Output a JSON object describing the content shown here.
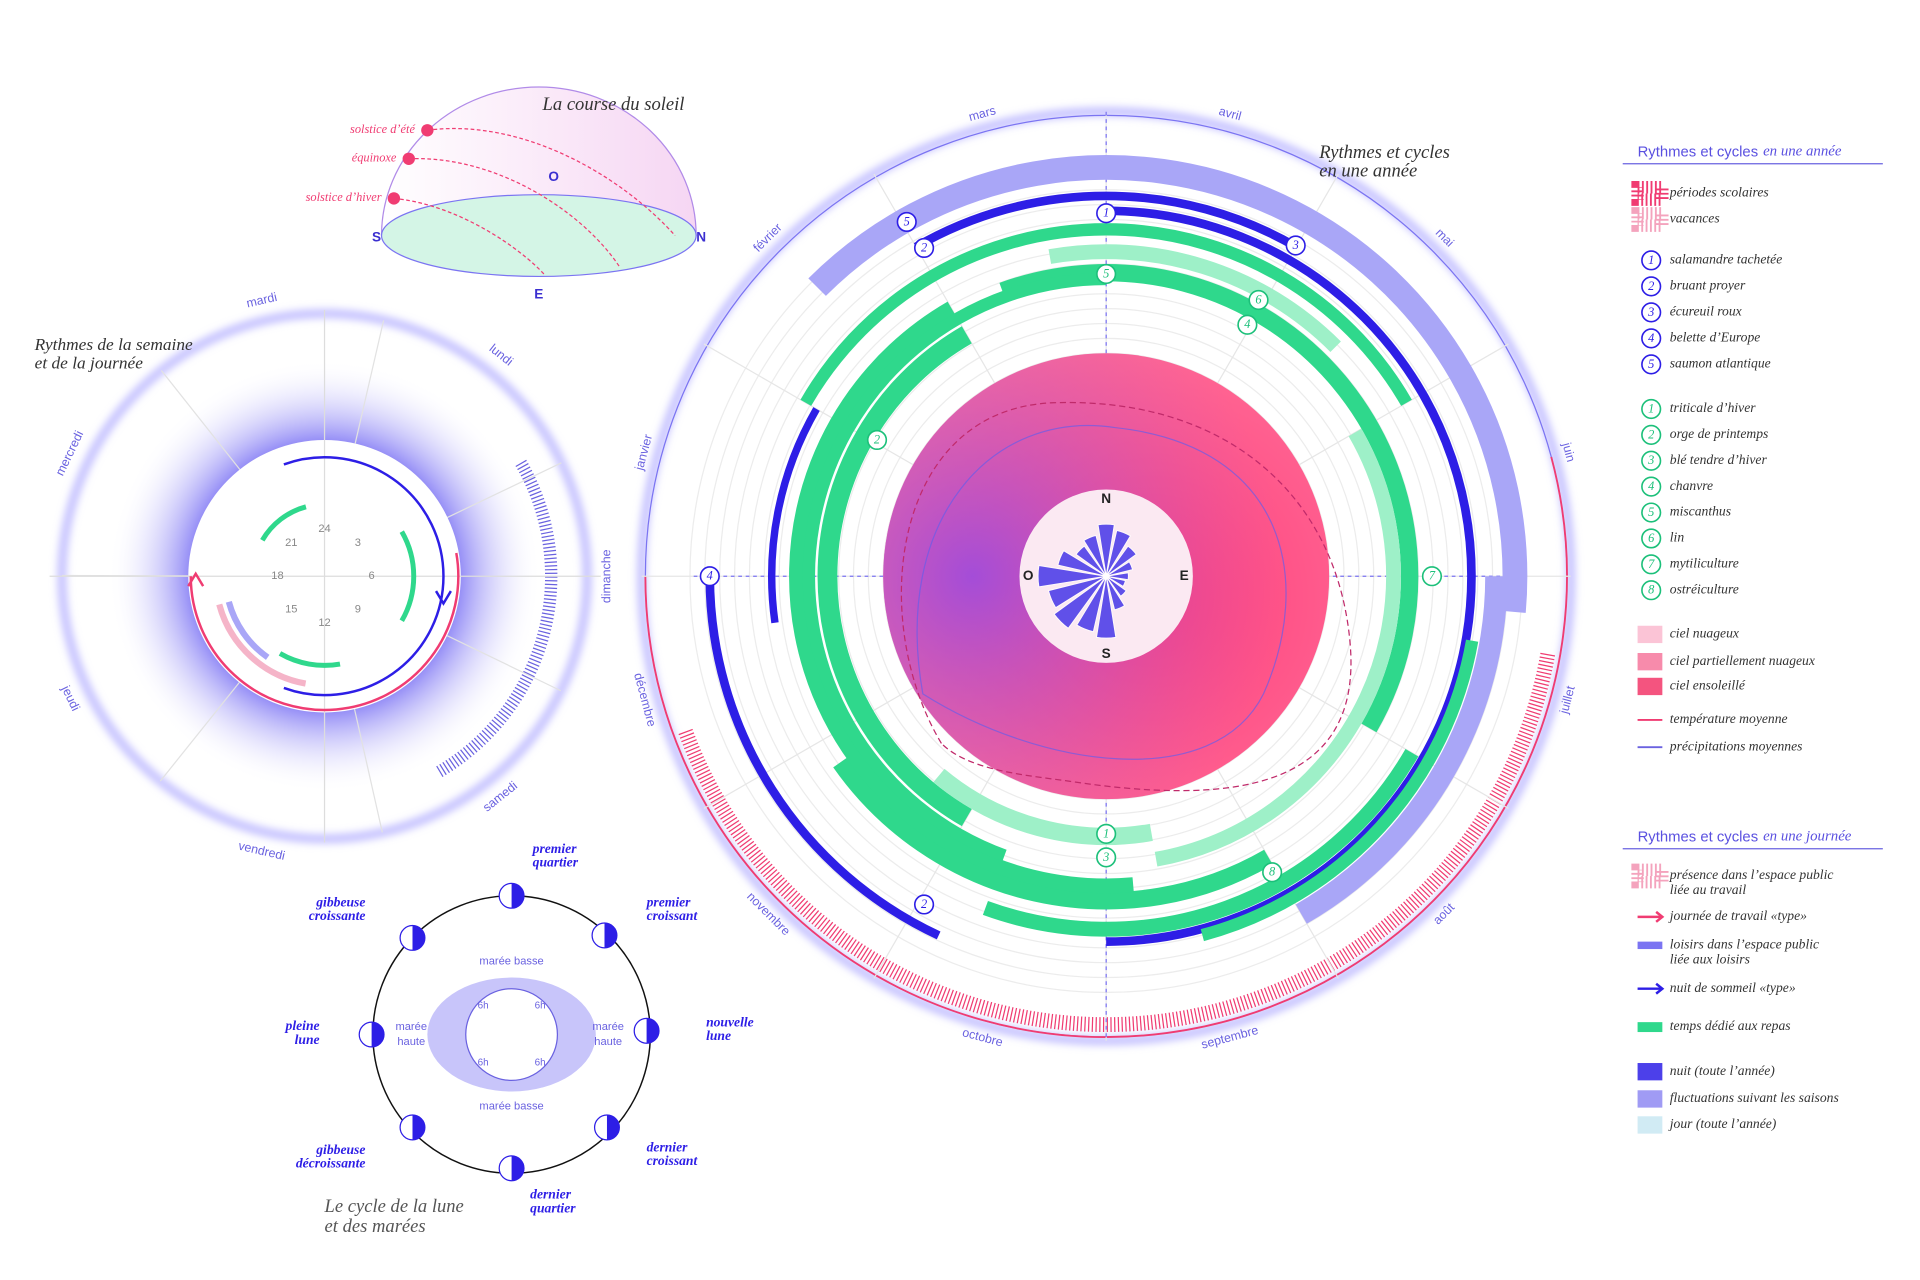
{
  "sun_course": {
    "title": "La course du soleil",
    "labels": [
      "solstice d’été",
      "équinoxe",
      "solstice d’hiver"
    ],
    "directions": [
      "S",
      "O",
      "N",
      "E"
    ]
  },
  "year": {
    "title_lines": [
      "Rythmes et cycles",
      "en une année"
    ],
    "months": [
      "janvier",
      "février",
      "mars",
      "avril",
      "mai",
      "juin",
      "juillet",
      "août",
      "septembre",
      "octobre",
      "novembre",
      "décembre"
    ],
    "compass": [
      "N",
      "E",
      "S",
      "O"
    ],
    "markers": [
      "1",
      "3",
      "5",
      "2",
      "5",
      "6",
      "4",
      "2",
      "4",
      "7",
      "1",
      "3",
      "8",
      "2"
    ]
  },
  "week": {
    "title_lines": [
      "Rythmes de la semaine",
      "et de la journée"
    ],
    "days": [
      "lundi",
      "mardi",
      "mercredi",
      "jeudi",
      "vendredi",
      "samedi",
      "dimanche"
    ],
    "hours": [
      24,
      3,
      6,
      9,
      12,
      15,
      18,
      21
    ]
  },
  "moon": {
    "title_lines": [
      "Le cycle de la lune",
      "et des marées"
    ],
    "phases": [
      [
        "premier",
        "quartier"
      ],
      [
        "premier",
        "croissant"
      ],
      [
        "nouvelle",
        "lune"
      ],
      [
        "dernier",
        "croissant"
      ],
      [
        "dernier",
        "quartier"
      ],
      [
        "gibbeuse",
        "décroissante"
      ],
      [
        "pleine",
        "lune"
      ],
      [
        "gibbeuse",
        "croissante"
      ]
    ],
    "tides": [
      [
        "marée basse"
      ],
      [
        "marée",
        "haute"
      ],
      [
        "marée basse"
      ],
      [
        "marée",
        "haute"
      ]
    ],
    "tide_hours": [
      "6h",
      "6h",
      "6h",
      "6h"
    ]
  },
  "legend_year": {
    "title": "Rythmes et cycles",
    "title_italic": "en une année",
    "school": [
      "périodes scolaires",
      "vacances"
    ],
    "animals": [
      {
        "symbol": "1",
        "label": "salamandre tachetée"
      },
      {
        "symbol": "2",
        "label": "bruant proyer"
      },
      {
        "symbol": "3",
        "label": "écureuil roux"
      },
      {
        "symbol": "4",
        "label": "belette d’Europe"
      },
      {
        "symbol": "5",
        "label": "saumon atlantique"
      }
    ],
    "crops": [
      {
        "symbol": "1",
        "label": "triticale d’hiver"
      },
      {
        "symbol": "2",
        "label": "orge de printemps"
      },
      {
        "symbol": "3",
        "label": "blé tendre d’hiver"
      },
      {
        "symbol": "4",
        "label": "chanvre"
      },
      {
        "symbol": "5",
        "label": "miscanthus"
      },
      {
        "symbol": "6",
        "label": "lin"
      },
      {
        "symbol": "7",
        "label": "mytiliculture"
      },
      {
        "symbol": "8",
        "label": "ostréiculture"
      }
    ],
    "sky": [
      "ciel nuageux",
      "ciel partiellement nuageux",
      "ciel ensoleillé"
    ],
    "climate": [
      "température moyenne",
      "précipitations moyennes"
    ]
  },
  "legend_day": {
    "title": "Rythmes et cycles",
    "title_italic": "en une journée",
    "items": [
      [
        "présence dans l’espace public",
        "liée au travail"
      ],
      [
        "journée de travail «type»"
      ],
      [
        "loisirs dans l’espace public",
        "liée aux loisirs"
      ],
      [
        "nuit de sommeil «type»"
      ],
      [
        "temps dédié aux repas"
      ],
      [
        "nuit (toute l’année)"
      ],
      [
        "fluctuations suivant les saisons"
      ],
      [
        "jour (toute l’année)"
      ]
    ]
  }
}
